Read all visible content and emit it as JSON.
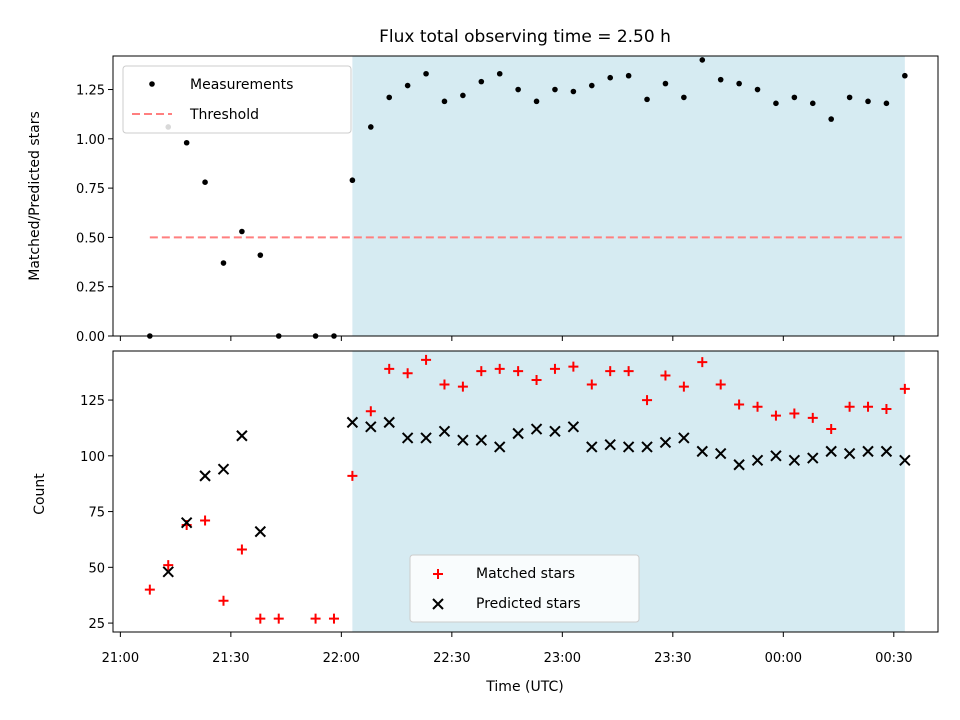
{
  "title": "Flux total observing time = 2.50 h",
  "colors": {
    "shade": "#add8e6",
    "measurement": "#000000",
    "threshold": "#ff7f7f",
    "matched": "#ff0000",
    "predicted": "#000000"
  },
  "chart_data": [
    {
      "type": "scatter",
      "ylabel": "Matched/Predicted stars",
      "xlim": [
        "20:58",
        "00:42"
      ],
      "ylim": [
        0,
        1.42
      ],
      "yticks": [
        0.0,
        0.25,
        0.5,
        0.75,
        1.0,
        1.25
      ],
      "ytick_labels": [
        "0.00",
        "0.25",
        "0.50",
        "0.75",
        "1.00",
        "1.25"
      ],
      "shaded_region": [
        "22:03",
        "00:33"
      ],
      "legend": {
        "position": "upper left",
        "items": [
          "Measurements",
          "Threshold"
        ]
      },
      "threshold": {
        "name": "Threshold",
        "value": 0.5,
        "x_range": [
          "21:08",
          "00:33"
        ]
      },
      "series": [
        {
          "name": "Measurements",
          "marker": "dot",
          "x": [
            "21:08",
            "21:13",
            "21:18",
            "21:23",
            "21:28",
            "21:33",
            "21:38",
            "21:43",
            "21:53",
            "21:58",
            "22:03",
            "22:08",
            "22:13",
            "22:18",
            "22:23",
            "22:28",
            "22:33",
            "22:38",
            "22:43",
            "22:48",
            "22:53",
            "22:58",
            "23:03",
            "23:08",
            "23:13",
            "23:18",
            "23:23",
            "23:28",
            "23:33",
            "23:38",
            "23:43",
            "23:48",
            "23:53",
            "23:58",
            "00:03",
            "00:08",
            "00:13",
            "00:18",
            "00:23",
            "00:28",
            "00:33"
          ],
          "y": [
            0.0,
            1.06,
            0.98,
            0.78,
            0.37,
            0.53,
            0.41,
            0.0,
            0.0,
            0.0,
            0.79,
            1.06,
            1.21,
            1.27,
            1.33,
            1.19,
            1.22,
            1.29,
            1.33,
            1.25,
            1.19,
            1.25,
            1.24,
            1.27,
            1.31,
            1.32,
            1.2,
            1.28,
            1.21,
            1.4,
            1.3,
            1.28,
            1.25,
            1.18,
            1.21,
            1.18,
            1.1,
            1.21,
            1.19,
            1.18,
            1.32
          ]
        }
      ]
    },
    {
      "type": "scatter",
      "xlabel": "Time (UTC)",
      "ylabel": "Count",
      "xlim": [
        "20:58",
        "00:42"
      ],
      "ylim": [
        21,
        147
      ],
      "yticks": [
        25,
        50,
        75,
        100,
        125
      ],
      "xticks": [
        "21:00",
        "21:30",
        "22:00",
        "22:30",
        "23:00",
        "23:30",
        "00:00",
        "00:30"
      ],
      "shaded_region": [
        "22:03",
        "00:33"
      ],
      "legend": {
        "position": "lower center",
        "items": [
          "Matched stars",
          "Predicted stars"
        ]
      },
      "series": [
        {
          "name": "Matched stars",
          "marker": "plus",
          "x": [
            "21:08",
            "21:13",
            "21:18",
            "21:23",
            "21:28",
            "21:33",
            "21:38",
            "21:43",
            "21:53",
            "21:58",
            "22:03",
            "22:08",
            "22:13",
            "22:18",
            "22:23",
            "22:28",
            "22:33",
            "22:38",
            "22:43",
            "22:48",
            "22:53",
            "22:58",
            "23:03",
            "23:08",
            "23:13",
            "23:18",
            "23:23",
            "23:28",
            "23:33",
            "23:38",
            "23:43",
            "23:48",
            "23:53",
            "23:58",
            "00:03",
            "00:08",
            "00:13",
            "00:18",
            "00:23",
            "00:28",
            "00:33"
          ],
          "y": [
            40,
            51,
            69,
            71,
            35,
            58,
            27,
            27,
            27,
            27,
            91,
            120,
            139,
            137,
            143,
            132,
            131,
            138,
            139,
            138,
            134,
            139,
            140,
            132,
            138,
            138,
            125,
            136,
            131,
            142,
            132,
            123,
            122,
            118,
            119,
            117,
            112,
            122,
            122,
            121,
            130
          ]
        },
        {
          "name": "Predicted stars",
          "marker": "x",
          "x": [
            "21:13",
            "21:18",
            "21:23",
            "21:28",
            "21:33",
            "21:38",
            "22:03",
            "22:08",
            "22:13",
            "22:18",
            "22:23",
            "22:28",
            "22:33",
            "22:38",
            "22:43",
            "22:48",
            "22:53",
            "22:58",
            "23:03",
            "23:08",
            "23:13",
            "23:18",
            "23:23",
            "23:28",
            "23:33",
            "23:38",
            "23:43",
            "23:48",
            "23:53",
            "23:58",
            "00:03",
            "00:08",
            "00:13",
            "00:18",
            "00:23",
            "00:28",
            "00:33"
          ],
          "y": [
            48,
            70,
            91,
            94,
            109,
            66,
            115,
            113,
            115,
            108,
            108,
            111,
            107,
            107,
            104,
            110,
            112,
            111,
            113,
            104,
            105,
            104,
            104,
            106,
            108,
            102,
            101,
            96,
            98,
            100,
            98,
            99,
            102,
            101,
            102,
            102,
            98
          ]
        }
      ]
    }
  ]
}
